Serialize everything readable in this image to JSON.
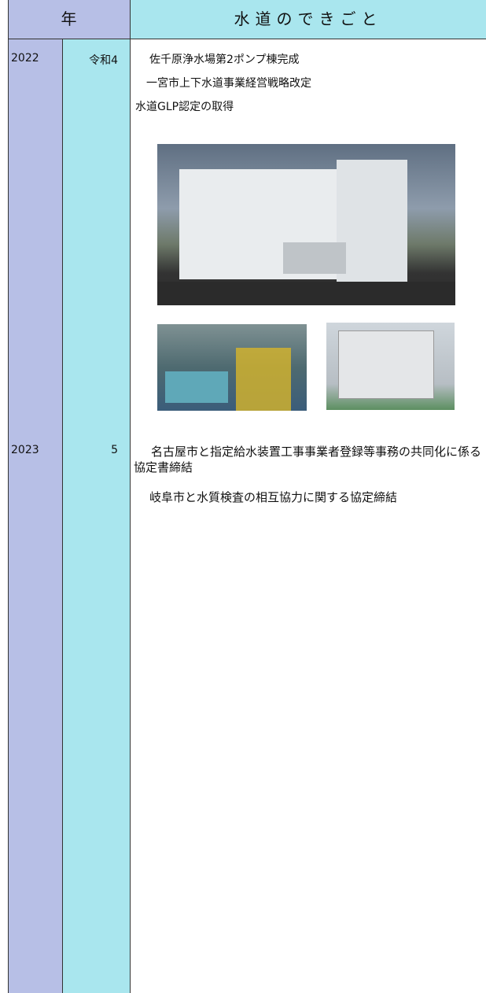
{
  "header": {
    "year_label": "年",
    "events_label": "水道のできごと"
  },
  "rows": [
    {
      "year": "2022",
      "era": "令和4",
      "events": [
        "佐千原浄水場第2ポンプ棟完成",
        "一宮市上下水道事業経営戦略改定",
        "水道GLP認定の取得"
      ]
    },
    {
      "year": "2023",
      "era": "5",
      "events": [
        "名古屋市と指定給水装置工事事業者登録等事務の共同化に係る協定書締結",
        "岐阜市と水質検査の相互協力に関する協定締結"
      ]
    }
  ]
}
